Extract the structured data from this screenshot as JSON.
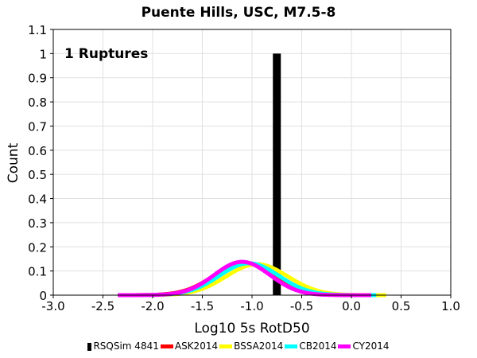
{
  "chart_data": {
    "type": "histogram",
    "title": "Puente Hills, USC, M7.5-8",
    "xlabel": "Log10 5s RotD50",
    "ylabel": "Count",
    "annotation": "1 Ruptures",
    "xlim": [
      -3.0,
      1.0
    ],
    "ylim": [
      0,
      1.1
    ],
    "x_ticks": [
      -3.0,
      -2.5,
      -2.0,
      -1.5,
      -1.0,
      -0.5,
      0.0,
      0.5,
      1.0
    ],
    "x_tick_labels": [
      "-3.0",
      "-2.5",
      "-2.0",
      "-1.5",
      "-1.0",
      "-0.5",
      "0.0",
      "0.5",
      "1.0"
    ],
    "y_ticks": [
      0,
      0.1,
      0.2,
      0.3,
      0.4,
      0.5,
      0.6,
      0.7,
      0.8,
      0.9,
      1,
      1.1
    ],
    "y_tick_labels": [
      "0",
      "0.1",
      "0.2",
      "0.3",
      "0.4",
      "0.5",
      "0.6",
      "0.7",
      "0.8",
      "0.9",
      "1",
      "1.1"
    ],
    "bars": [
      {
        "series": "RSQSim 4841",
        "x_start": -0.79,
        "x_end": -0.71,
        "value": 1.0,
        "color": "#000000"
      }
    ],
    "series": [
      {
        "name": "ASK2014",
        "color": "#ff0000",
        "mean": -1.08,
        "sigma": 0.3,
        "peak": 0.135,
        "x_min": -2.35,
        "x_max": 0.2
      },
      {
        "name": "BSSA2014",
        "color": "#ffff00",
        "mean": -0.95,
        "sigma": 0.31,
        "peak": 0.128,
        "x_min": -2.35,
        "x_max": 0.35
      },
      {
        "name": "CB2014",
        "color": "#00ffff",
        "mean": -1.03,
        "sigma": 0.3,
        "peak": 0.132,
        "x_min": -2.35,
        "x_max": 0.25
      },
      {
        "name": "CY2014",
        "color": "#ff00ff",
        "mean": -1.1,
        "sigma": 0.28,
        "peak": 0.138,
        "x_min": -2.35,
        "x_max": 0.2
      }
    ],
    "legend": [
      {
        "label": "RSQSim 4841",
        "color": "#000000",
        "kind": "bar"
      },
      {
        "label": "ASK2014",
        "color": "#ff0000",
        "kind": "line"
      },
      {
        "label": "BSSA2014",
        "color": "#ffff00",
        "kind": "line"
      },
      {
        "label": "CB2014",
        "color": "#00ffff",
        "kind": "line"
      },
      {
        "label": "CY2014",
        "color": "#ff00ff",
        "kind": "line"
      }
    ],
    "legend_position": "bottom"
  }
}
